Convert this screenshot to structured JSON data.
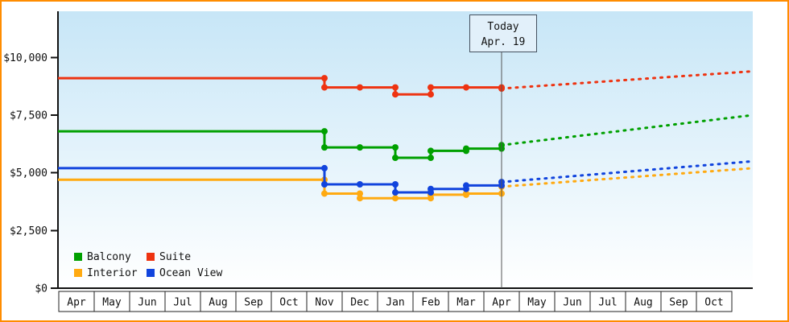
{
  "chart_data": {
    "type": "line",
    "x_labels": [
      "Apr",
      "May",
      "Jun",
      "Jul",
      "Aug",
      "Sep",
      "Oct",
      "Nov",
      "Dec",
      "Jan",
      "Feb",
      "Mar",
      "Apr",
      "May",
      "Jun",
      "Jul",
      "Aug",
      "Sep",
      "Oct"
    ],
    "y_ticks": [
      0,
      2500,
      5000,
      7500,
      10000
    ],
    "y_tick_labels": [
      "$0",
      "$2,500",
      "$5,000",
      "$7,500",
      "$10,000"
    ],
    "ylim": [
      0,
      12000
    ],
    "today_index": 12,
    "marker_start_index": 7,
    "grid": false,
    "annotation": {
      "line1": "Today",
      "line2": "Apr. 19"
    },
    "legend_order": [
      "Balcony",
      "Suite",
      "Interior",
      "Ocean View"
    ],
    "legend_position": "bottom-left-inside",
    "series": [
      {
        "name": "Suite",
        "color": "#ee3311",
        "values": [
          9100,
          9100,
          9100,
          9100,
          9100,
          9100,
          9100,
          8700,
          8700,
          8400,
          8700,
          8700,
          8650
        ],
        "forecast_end": 9400
      },
      {
        "name": "Balcony",
        "color": "#00a000",
        "values": [
          6800,
          6800,
          6800,
          6800,
          6800,
          6800,
          6800,
          6100,
          6100,
          5650,
          5950,
          6050,
          6200
        ],
        "forecast_end": 7500
      },
      {
        "name": "Ocean View",
        "color": "#1144dd",
        "values": [
          5200,
          5200,
          5200,
          5200,
          5200,
          5200,
          5200,
          4500,
          4500,
          4150,
          4300,
          4450,
          4600
        ],
        "forecast_end": 5500
      },
      {
        "name": "Interior",
        "color": "#ffaa11",
        "values": [
          4700,
          4700,
          4700,
          4700,
          4700,
          4700,
          4700,
          4100,
          3900,
          3900,
          4050,
          4100,
          4400
        ],
        "forecast_end": 5200
      }
    ],
    "colors": {
      "frame": "#ff8c00",
      "axis": "#111111",
      "text": "#111111",
      "plot_bg_top": "#c7e6f7",
      "plot_bg_bottom": "#ffffff",
      "today_line": "#555555",
      "cell_border": "#222222",
      "cell_bg": "#ffffff",
      "annotation_bg": "#e2f0fa",
      "annotation_border": "#44515f"
    }
  }
}
